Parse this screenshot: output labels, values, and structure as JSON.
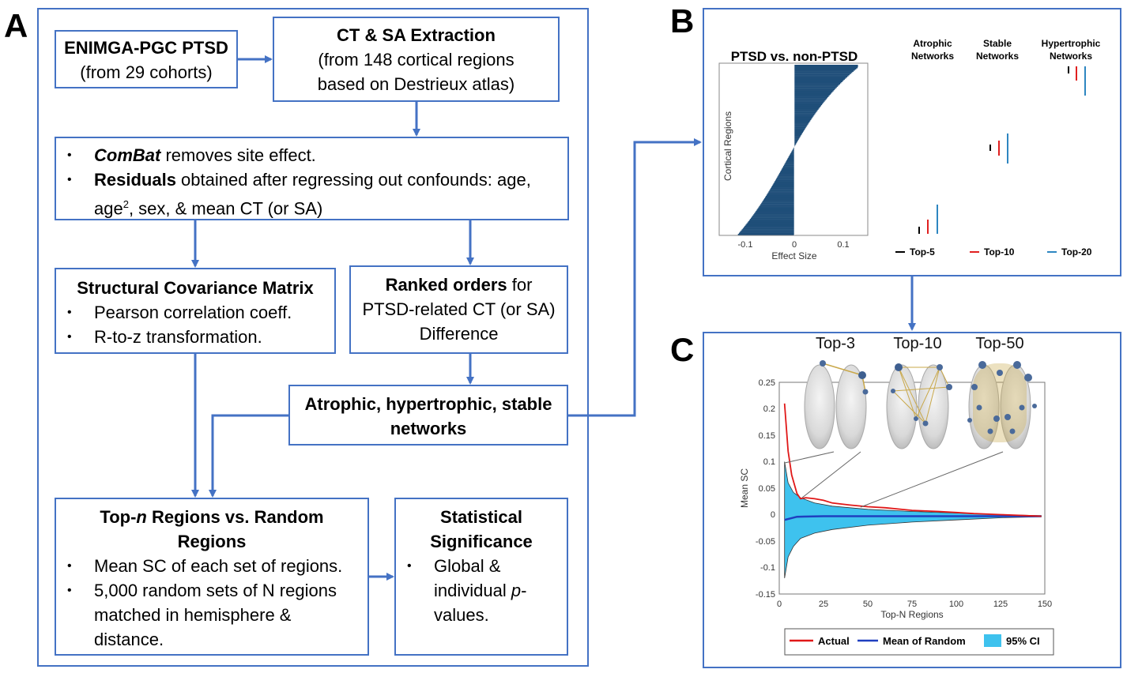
{
  "panels": {
    "a": "A",
    "b": "B",
    "c": "C"
  },
  "flow": {
    "enimga": {
      "title": "ENIMGA-PGC PTSD",
      "sub": "(from 29 cohorts)"
    },
    "extraction": {
      "title": "CT & SA Extraction",
      "line1": "(from 148 cortical regions",
      "line2": "based on Destrieux atlas)"
    },
    "preproc": {
      "combat_em": "ComBat",
      "combat_rest": " removes site effect.",
      "resid_bold": "Residuals",
      "resid_rest": " obtained after regressing out confounds: age,",
      "age2_pre": "age",
      "age2_sup": "2",
      "age2_rest": ", sex, & mean CT (or SA)"
    },
    "scm": {
      "title": "Structural Covariance Matrix",
      "items": [
        "Pearson correlation coeff.",
        "R-to-z transformation."
      ]
    },
    "ranked": {
      "bold": "Ranked orders",
      "rest": " for",
      "line2": "PTSD-related CT (or SA)",
      "line3": "Difference"
    },
    "networks": {
      "line1": "Atrophic, hypertrophic, stable",
      "line2": "networks"
    },
    "topn": {
      "title_pre": "Top-",
      "title_n": "n",
      "title_post": " Regions vs. Random",
      "title_line2": "Regions",
      "item1": "Mean SC of each set of regions.",
      "item2_lines": [
        "5,000 random sets of N regions",
        "matched in hemisphere &",
        "distance."
      ]
    },
    "stat": {
      "title1": "Statistical",
      "title2": "Significance",
      "lines": [
        "Global &",
        "individual ",
        "values."
      ],
      "p": "p",
      "dash": "-"
    }
  },
  "panel_b": {
    "title": "PTSD vs. non-PTSD",
    "ylabel": "Cortical Regions",
    "xlabel": "Effect Size",
    "xticks": [
      "-0.1",
      "0",
      "0.1"
    ],
    "col_headers": [
      [
        "Atrophic",
        "Networks"
      ],
      [
        "Stable",
        "Networks"
      ],
      [
        "Hypertrophic",
        "Networks"
      ]
    ],
    "legend": [
      "Top-5",
      "Top-10",
      "Top-20"
    ],
    "colors": {
      "bar": "#1f4e79",
      "top5": "#000000",
      "top10": "#e02020",
      "top20": "#2e86c1"
    }
  },
  "panel_c": {
    "brain_labels": [
      "Top-3",
      "Top-10",
      "Top-50"
    ],
    "ylabel": "Mean SC",
    "xlabel": "Top-N Regions",
    "yticks": [
      "0.25",
      "0.2",
      "0.15",
      "0.1",
      "0.05",
      "0",
      "-0.05",
      "-0.1",
      "-0.15"
    ],
    "xticks": [
      "0",
      "25",
      "50",
      "75",
      "100",
      "125",
      "150"
    ],
    "legend": [
      "Actual",
      "Mean of Random",
      "95% CI"
    ],
    "colors": {
      "actual": "#e01818",
      "random": "#1f3fbf",
      "ci": "#3ec2ee"
    }
  },
  "chart_data": {
    "type": "line",
    "xlabel": "Top-N Regions",
    "ylabel": "Mean SC",
    "xlim": [
      0,
      150
    ],
    "ylim": [
      -0.15,
      0.25
    ],
    "series": [
      {
        "name": "Actual",
        "x": [
          3,
          5,
          7,
          10,
          12,
          15,
          20,
          25,
          30,
          40,
          50,
          60,
          75,
          90,
          100,
          110,
          125,
          140,
          148
        ],
        "values": [
          0.21,
          0.12,
          0.075,
          0.04,
          0.03,
          0.032,
          0.03,
          0.027,
          0.022,
          0.018,
          0.015,
          0.013,
          0.008,
          0.006,
          0.004,
          0.002,
          0.0,
          -0.002,
          -0.003
        ]
      },
      {
        "name": "Mean of Random",
        "x": [
          3,
          10,
          25,
          50,
          75,
          100,
          125,
          148
        ],
        "values": [
          -0.01,
          -0.004,
          -0.003,
          -0.003,
          -0.003,
          -0.003,
          -0.003,
          -0.003
        ]
      }
    ],
    "ci_upper": {
      "x": [
        3,
        5,
        8,
        12,
        20,
        30,
        50,
        75,
        100,
        125,
        148
      ],
      "values": [
        0.1,
        0.06,
        0.042,
        0.032,
        0.022,
        0.016,
        0.01,
        0.006,
        0.003,
        0.0,
        -0.002
      ]
    },
    "ci_lower": {
      "x": [
        3,
        5,
        8,
        12,
        20,
        30,
        50,
        75,
        100,
        125,
        148
      ],
      "values": [
        -0.12,
        -0.08,
        -0.06,
        -0.045,
        -0.035,
        -0.028,
        -0.02,
        -0.014,
        -0.01,
        -0.006,
        -0.004
      ]
    }
  }
}
